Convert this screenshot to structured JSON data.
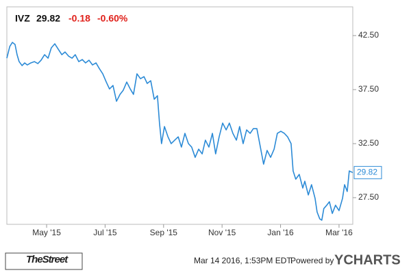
{
  "header": {
    "ticker": "IVZ",
    "price": 29.82,
    "change": -0.18,
    "change_pct": "-0.60%"
  },
  "footer": {
    "source_logo": "TheStreet",
    "timestamp": "Mar 14 2016, 1:53PM EDT.",
    "powered_by": "Powered by",
    "brand": "YCHARTS"
  },
  "chart_data": {
    "type": "line",
    "color": "#2b8ad6",
    "grid": false,
    "x": [
      3.64,
      3.74,
      3.83,
      3.92,
      3.99,
      4.06,
      4.16,
      4.25,
      4.34,
      4.46,
      4.58,
      4.7,
      4.81,
      4.93,
      5.05,
      5.16,
      5.28,
      5.4,
      5.52,
      5.63,
      5.75,
      5.87,
      5.98,
      6.1,
      6.22,
      6.33,
      6.45,
      6.57,
      6.69,
      6.8,
      6.92,
      7.04,
      7.15,
      7.27,
      7.39,
      7.51,
      7.62,
      7.74,
      7.86,
      7.97,
      8.09,
      8.21,
      8.33,
      8.44,
      8.56,
      8.68,
      8.79,
      8.86,
      8.93,
      9.03,
      9.15,
      9.26,
      9.38,
      9.5,
      9.61,
      9.73,
      9.85,
      9.96,
      10.08,
      10.2,
      10.32,
      10.43,
      10.55,
      10.67,
      10.78,
      10.9,
      11.02,
      11.14,
      11.25,
      11.37,
      11.49,
      11.6,
      11.72,
      11.84,
      11.96,
      12.07,
      12.19,
      12.31,
      12.42,
      12.54,
      12.66,
      12.78,
      12.89,
      13.01,
      13.13,
      13.24,
      13.36,
      13.43,
      13.52,
      13.64,
      13.76,
      13.83,
      13.95,
      14.06,
      14.18,
      14.25,
      14.34,
      14.41,
      14.48,
      14.58,
      14.67,
      14.77,
      14.88,
      15.0,
      15.12,
      15.19,
      15.28,
      15.35,
      15.47
    ],
    "values": [
      40.41,
      41.49,
      41.87,
      41.68,
      40.73,
      40.09,
      39.72,
      39.97,
      39.78,
      39.97,
      40.09,
      39.91,
      40.22,
      40.73,
      40.41,
      41.36,
      41.74,
      41.23,
      40.73,
      40.98,
      40.6,
      40.41,
      40.73,
      40.09,
      40.28,
      39.97,
      40.22,
      39.78,
      39.97,
      39.46,
      38.96,
      38.2,
      37.56,
      37.88,
      36.42,
      37.06,
      37.44,
      38.2,
      37.56,
      37.06,
      38.96,
      38.51,
      38.7,
      38.07,
      38.32,
      36.61,
      36.93,
      34.4,
      32.5,
      34.08,
      33.13,
      32.5,
      32.82,
      33.13,
      32.18,
      33.45,
      32.5,
      32.18,
      31.23,
      31.99,
      31.55,
      32.82,
      32.18,
      33.45,
      31.55,
      33.13,
      34.4,
      33.77,
      34.4,
      33.45,
      32.82,
      34.08,
      32.5,
      33.77,
      33.45,
      33.89,
      33.89,
      32.18,
      30.6,
      31.87,
      31.23,
      31.99,
      33.45,
      33.64,
      33.45,
      33.13,
      32.5,
      29.97,
      29.21,
      29.65,
      28.39,
      29.02,
      27.75,
      28.7,
      27.44,
      26.17,
      25.54,
      25.41,
      26.49,
      26.8,
      27.12,
      26.04,
      26.8,
      26.3,
      27.44,
      28.7,
      28.07,
      29.97,
      29.82
    ],
    "xlim": [
      3.64,
      15.47
    ],
    "xticks": [
      {
        "value": 5,
        "label": "May '15"
      },
      {
        "value": 7,
        "label": "Jul '15"
      },
      {
        "value": 9,
        "label": "Sep '15"
      },
      {
        "value": 11,
        "label": "Nov '15"
      },
      {
        "value": 13,
        "label": "Jan '16"
      },
      {
        "value": 15,
        "label": "Mar '16"
      }
    ],
    "ylim": [
      25.03,
      45.16
    ],
    "yticks": [
      {
        "value": 27.5,
        "label": "27.50"
      },
      {
        "value": 32.5,
        "label": "32.50"
      },
      {
        "value": 37.5,
        "label": "37.50"
      },
      {
        "value": 42.5,
        "label": "42.50"
      }
    ]
  }
}
